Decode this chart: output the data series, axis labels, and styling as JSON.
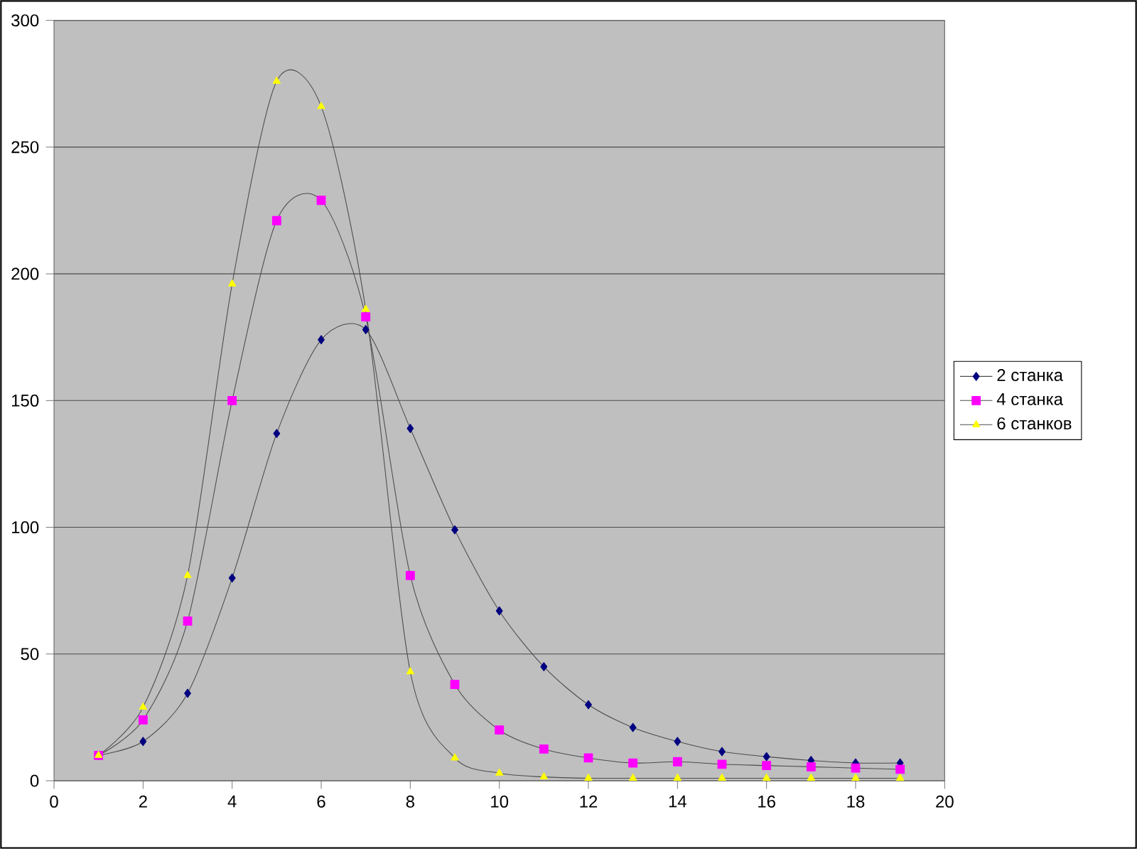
{
  "chart_data": {
    "type": "line",
    "x": [
      1,
      2,
      3,
      4,
      5,
      6,
      7,
      8,
      9,
      10,
      11,
      12,
      13,
      14,
      15,
      16,
      17,
      18,
      19
    ],
    "series": [
      {
        "name": "2 станка",
        "color": "#000080",
        "marker": "diamond",
        "values": [
          10,
          15.5,
          34.5,
          80,
          137,
          174,
          178,
          139,
          99,
          67,
          45,
          30,
          21,
          15.5,
          11.5,
          9.5,
          8,
          7,
          7
        ]
      },
      {
        "name": "4 станка",
        "color": "#ff00ff",
        "marker": "square",
        "values": [
          10,
          24,
          63,
          150,
          221,
          229,
          183,
          81,
          38,
          20,
          12.5,
          9,
          7,
          7.5,
          6.5,
          6,
          5.5,
          5,
          4.5
        ]
      },
      {
        "name": "6 станков",
        "color": "#ffff00",
        "marker": "triangle",
        "values": [
          10,
          29,
          81,
          196,
          276,
          266,
          186,
          43,
          9,
          3,
          1.5,
          1,
          1,
          1,
          1,
          1,
          1,
          1,
          1
        ]
      }
    ],
    "xlim": [
      0,
      20
    ],
    "xticks": [
      0,
      2,
      4,
      6,
      8,
      10,
      12,
      14,
      16,
      18,
      20
    ],
    "ylim": [
      0,
      300
    ],
    "yticks": [
      0,
      50,
      100,
      150,
      200,
      250,
      300
    ],
    "grid": "y",
    "legend": "right"
  }
}
